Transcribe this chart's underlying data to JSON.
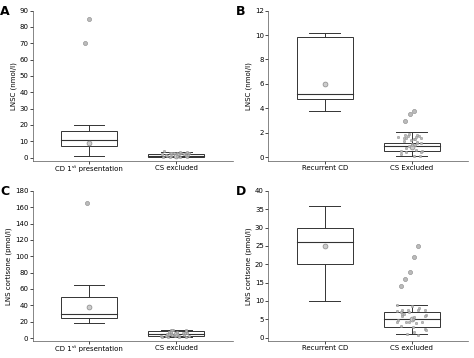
{
  "panels": [
    {
      "label": "A",
      "ylabel": "LNSC (nmol/l)",
      "ylim": [
        -2,
        90
      ],
      "yticks": [
        0,
        10,
        20,
        30,
        40,
        50,
        60,
        70,
        80,
        90
      ],
      "categories": [
        "CD 1ˢᵗ presentation",
        "CS excluded"
      ],
      "cat1_super": true,
      "boxes": [
        {
          "q1": 7,
          "median": 11,
          "q3": 16,
          "whisker_low": 1,
          "whisker_high": 20,
          "mean": 9,
          "fliers": [
            70,
            85
          ]
        },
        {
          "q1": 0.5,
          "median": 1.0,
          "q3": 2.0,
          "whisker_low": 0.2,
          "whisker_high": 3.5,
          "mean": 1.2,
          "fliers": []
        }
      ],
      "scatter2": {
        "ymin": 0.1,
        "ymax": 4.0,
        "n": 25,
        "seed": 10
      }
    },
    {
      "label": "B",
      "ylabel": "LNSC (nmol/l)",
      "ylim": [
        -0.3,
        12
      ],
      "yticks": [
        0,
        2,
        4,
        6,
        8,
        10,
        12
      ],
      "categories": [
        "Recurrent CD",
        "CS Excluded"
      ],
      "cat1_super": false,
      "boxes": [
        {
          "q1": 4.8,
          "median": 5.2,
          "q3": 9.8,
          "whisker_low": 3.8,
          "whisker_high": 10.2,
          "mean": 6.0,
          "fliers": []
        },
        {
          "q1": 0.5,
          "median": 0.9,
          "q3": 1.2,
          "whisker_low": 0.1,
          "whisker_high": 2.1,
          "mean": 0.8,
          "fliers": [
            3.0,
            3.5,
            3.8
          ]
        }
      ],
      "scatter2": {
        "ymin": 0.05,
        "ymax": 2.0,
        "n": 30,
        "seed": 20
      }
    },
    {
      "label": "C",
      "ylabel": "LNS cortisone (pmol/l)",
      "ylim": [
        -4,
        180
      ],
      "yticks": [
        0,
        20,
        40,
        60,
        80,
        100,
        120,
        140,
        160,
        180
      ],
      "categories": [
        "CD 1ˢᵗ presentation",
        "CS excluded"
      ],
      "cat1_super": true,
      "boxes": [
        {
          "q1": 25,
          "median": 30,
          "q3": 50,
          "whisker_low": 18,
          "whisker_high": 65,
          "mean": 38,
          "fliers": [
            165
          ]
        },
        {
          "q1": 3,
          "median": 5,
          "q3": 8,
          "whisker_low": 1,
          "whisker_high": 10,
          "mean": 5,
          "fliers": []
        }
      ],
      "scatter2": {
        "ymin": 0.5,
        "ymax": 10,
        "n": 30,
        "seed": 30
      }
    },
    {
      "label": "D",
      "ylabel": "LNS cortisone (pmol/l)",
      "ylim": [
        -1,
        40
      ],
      "yticks": [
        0,
        5,
        10,
        15,
        20,
        25,
        30,
        35,
        40
      ],
      "categories": [
        "Recurrent CD",
        "CS excluded"
      ],
      "cat1_super": false,
      "boxes": [
        {
          "q1": 20,
          "median": 26,
          "q3": 30,
          "whisker_low": 10,
          "whisker_high": 36,
          "mean": 25,
          "fliers": []
        },
        {
          "q1": 3,
          "median": 5,
          "q3": 7,
          "whisker_low": 1,
          "whisker_high": 9,
          "mean": 5,
          "fliers": [
            14,
            16,
            18,
            22,
            25
          ]
        }
      ],
      "scatter2": {
        "ymin": 0.5,
        "ymax": 9,
        "n": 30,
        "seed": 40
      }
    }
  ],
  "bg_color": "#ffffff",
  "box_facecolor": "#ffffff",
  "box_edgecolor": "#333333",
  "median_color": "#333333",
  "whisker_color": "#333333",
  "flier_marker_color": "#bbbbbb",
  "flier_edge_color": "#888888",
  "mean_face_color": "#cccccc",
  "mean_edge_color": "#888888"
}
